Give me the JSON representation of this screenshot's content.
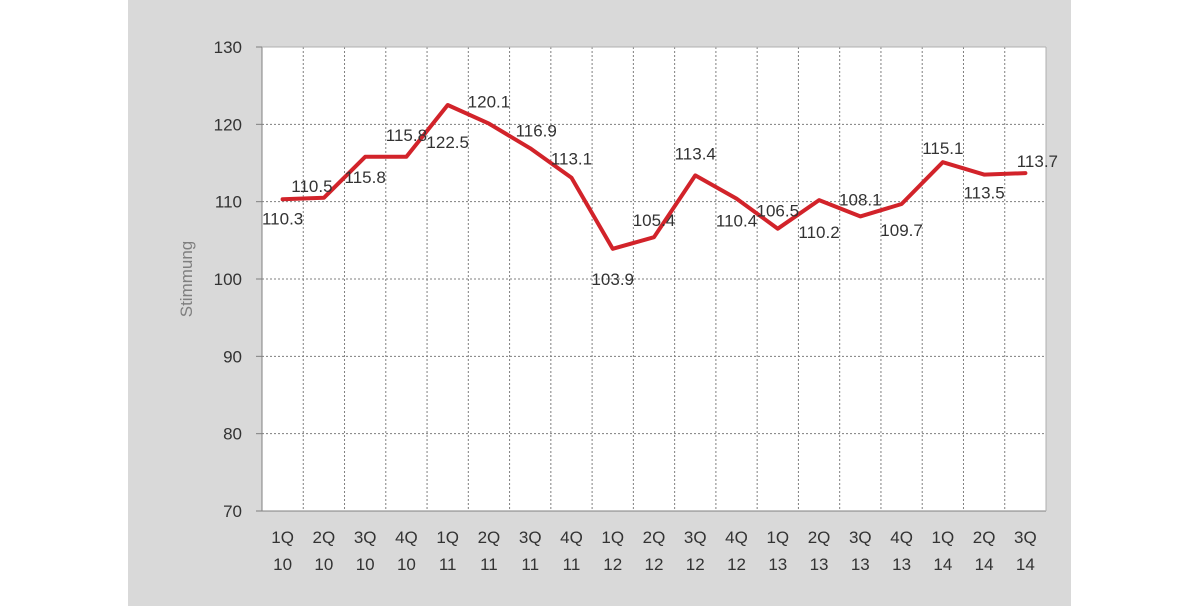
{
  "chart_data": {
    "type": "line",
    "ylabel": "Stimmung",
    "xlabel": "",
    "ylim": [
      70,
      130
    ],
    "yticks": [
      "70",
      "80",
      "90",
      "100",
      "110",
      "120",
      "130"
    ],
    "grid": "on",
    "categories": [
      [
        "1Q",
        "10"
      ],
      [
        "2Q",
        "10"
      ],
      [
        "3Q",
        "10"
      ],
      [
        "4Q",
        "10"
      ],
      [
        "1Q",
        "11"
      ],
      [
        "2Q",
        "11"
      ],
      [
        "3Q",
        "11"
      ],
      [
        "4Q",
        "11"
      ],
      [
        "1Q",
        "12"
      ],
      [
        "2Q",
        "12"
      ],
      [
        "3Q",
        "12"
      ],
      [
        "4Q",
        "12"
      ],
      [
        "1Q",
        "13"
      ],
      [
        "2Q",
        "13"
      ],
      [
        "3Q",
        "13"
      ],
      [
        "4Q",
        "13"
      ],
      [
        "1Q",
        "14"
      ],
      [
        "2Q",
        "14"
      ],
      [
        "3Q",
        "14"
      ]
    ],
    "series": [
      {
        "color": "#d2232a",
        "values": [
          110.3,
          110.5,
          115.8,
          115.8,
          122.5,
          120.1,
          116.9,
          113.1,
          103.9,
          105.4,
          113.4,
          110.4,
          106.5,
          110.2,
          108.1,
          109.7,
          115.1,
          113.5,
          113.7
        ],
        "labels": [
          "110.3",
          "110.5",
          "115.8",
          "115.8",
          "122.5",
          "120.1",
          "116.9",
          "113.1",
          "103.9",
          "105.4",
          "113.4",
          "110.4",
          "106.5",
          "110.2",
          "108.1",
          "109.7",
          "115.1",
          "113.5",
          "113.7"
        ]
      }
    ]
  }
}
